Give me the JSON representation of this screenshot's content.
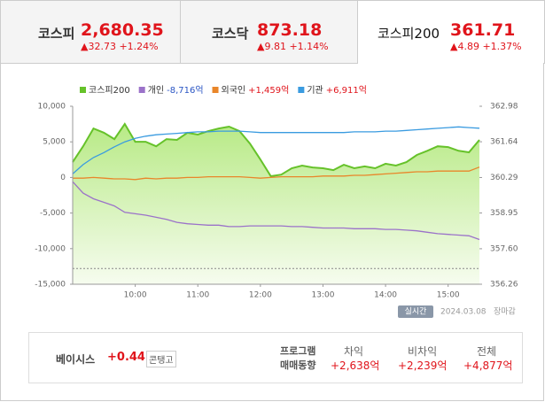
{
  "tabs": [
    {
      "name": "코스피",
      "value": "2,680.35",
      "change": "32.73",
      "rate": "+1.24%"
    },
    {
      "name": "코스닥",
      "value": "873.18",
      "change": "9.81",
      "rate": "+1.14%"
    },
    {
      "name": "코스피200",
      "value": "361.71",
      "change": "4.89",
      "rate": "+1.37%"
    }
  ],
  "chart_data": {
    "type": "line",
    "x": [
      "09:00",
      "09:10",
      "09:20",
      "09:30",
      "09:40",
      "09:50",
      "10:00",
      "10:10",
      "10:20",
      "10:30",
      "10:40",
      "10:50",
      "11:00",
      "11:10",
      "11:20",
      "11:30",
      "11:40",
      "11:50",
      "12:00",
      "12:10",
      "12:20",
      "12:30",
      "12:40",
      "12:50",
      "13:00",
      "13:10",
      "13:20",
      "13:30",
      "13:40",
      "13:50",
      "14:00",
      "14:10",
      "14:20",
      "14:30",
      "14:40",
      "14:50",
      "15:00",
      "15:10",
      "15:20",
      "15:30"
    ],
    "xlim": [
      "09:00",
      "15:30"
    ],
    "xticks": [
      "10:00",
      "11:00",
      "12:00",
      "13:00",
      "14:00",
      "15:00"
    ],
    "ylim": [
      -15000,
      10000
    ],
    "yticks": [
      {
        "value": 10000,
        "label": "10,000"
      },
      {
        "value": 5000,
        "label": "5,000"
      },
      0,
      {
        "value": -5000,
        "label": "-5,000"
      },
      {
        "value": -10000,
        "label": "-10,000"
      },
      {
        "value": -15000,
        "label": "-15,000"
      }
    ],
    "y2lim": [
      356.26,
      362.98
    ],
    "y2ticks": [
      362.98,
      361.64,
      360.29,
      358.95,
      {
        "value": 357.6,
        "label": "357.60"
      },
      356.26
    ],
    "reference_line": -12800,
    "series": [
      {
        "name": "코스피200",
        "color": "#66c22a",
        "axis": "y2",
        "area": true,
        "values": [
          360.87,
          361.47,
          362.14,
          361.98,
          361.74,
          362.31,
          361.64,
          361.64,
          361.47,
          361.74,
          361.71,
          361.98,
          361.91,
          362.04,
          362.14,
          362.21,
          362.04,
          361.57,
          360.97,
          360.34,
          360.4,
          360.64,
          360.74,
          360.67,
          360.64,
          360.57,
          360.77,
          360.64,
          360.71,
          360.64,
          360.81,
          360.74,
          360.87,
          361.14,
          361.3,
          361.47,
          361.44,
          361.3,
          361.24,
          361.71
        ]
      },
      {
        "name": "개인",
        "summary": "-8,716억",
        "color": "#9b72c9",
        "values": [
          -600,
          -2200,
          -3000,
          -3500,
          -4000,
          -4900,
          -5100,
          -5300,
          -5600,
          -5900,
          -6300,
          -6500,
          -6600,
          -6700,
          -6700,
          -6900,
          -6900,
          -6800,
          -6800,
          -6800,
          -6800,
          -6900,
          -6900,
          -7000,
          -7100,
          -7100,
          -7100,
          -7200,
          -7200,
          -7200,
          -7300,
          -7300,
          -7400,
          -7500,
          -7700,
          -7900,
          -8000,
          -8100,
          -8200,
          -8716
        ]
      },
      {
        "name": "외국인",
        "summary": "+1,459억",
        "color": "#e9862a",
        "values": [
          -100,
          -100,
          0,
          -100,
          -200,
          -200,
          -300,
          -100,
          -200,
          -100,
          -100,
          0,
          0,
          100,
          100,
          100,
          100,
          0,
          -100,
          0,
          100,
          100,
          100,
          100,
          200,
          200,
          200,
          300,
          300,
          400,
          500,
          600,
          700,
          800,
          800,
          900,
          900,
          900,
          900,
          1459
        ]
      },
      {
        "name": "기관",
        "summary": "+6,911억",
        "color": "#3a9be0",
        "values": [
          500,
          1800,
          2800,
          3500,
          4300,
          5000,
          5500,
          5800,
          6000,
          6100,
          6200,
          6300,
          6400,
          6400,
          6500,
          6500,
          6500,
          6400,
          6300,
          6300,
          6300,
          6300,
          6300,
          6300,
          6300,
          6300,
          6300,
          6400,
          6400,
          6400,
          6500,
          6500,
          6600,
          6700,
          6800,
          6900,
          7000,
          7100,
          7000,
          6911
        ]
      }
    ]
  },
  "status": {
    "badge": "실시간",
    "date": "2024.03.08",
    "state": "장마감"
  },
  "footer": {
    "basis": {
      "label": "베이시스",
      "value": "+0.44",
      "state": "콘탱고"
    },
    "program": {
      "title": [
        "프로그램",
        "매매동향"
      ],
      "items": [
        {
          "label": "차익",
          "value": "+2,638억"
        },
        {
          "label": "비차익",
          "value": "+2,239억"
        },
        {
          "label": "전체",
          "value": "+4,877억"
        }
      ]
    }
  }
}
